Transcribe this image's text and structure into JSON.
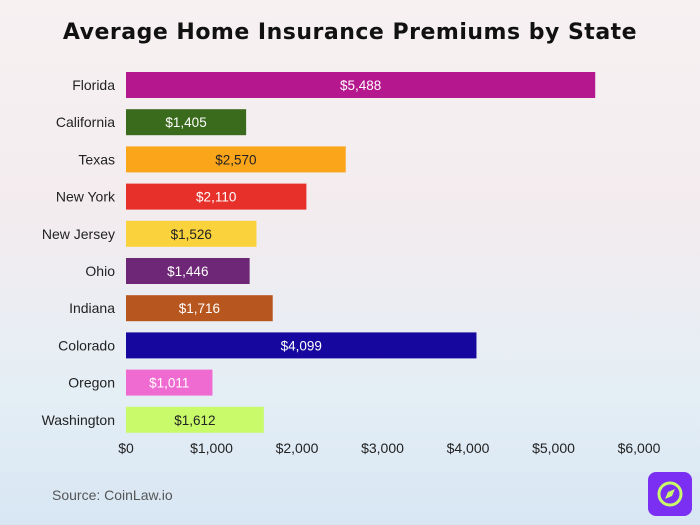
{
  "chart_data": {
    "type": "bar",
    "orientation": "horizontal",
    "title": "Average Home Insurance Premiums by State",
    "categories": [
      "Florida",
      "California",
      "Texas",
      "New York",
      "New Jersey",
      "Ohio",
      "Indiana",
      "Colorado",
      "Oregon",
      "Washington"
    ],
    "values": [
      5488,
      1405,
      2570,
      2110,
      1526,
      1446,
      1716,
      4099,
      1011,
      1612
    ],
    "value_labels": [
      "$5,488",
      "$1,405",
      "$2,570",
      "$2,110",
      "$1,526",
      "$1,446",
      "$1,716",
      "$4,099",
      "$1,011",
      "$1,612"
    ],
    "colors": [
      "#b5178e",
      "#3a6a1b",
      "#fba51b",
      "#e8302b",
      "#f9d23c",
      "#6e2676",
      "#b7561e",
      "#16089f",
      "#ef6bd1",
      "#c8fa6a"
    ],
    "label_colors": [
      "#ffffff",
      "#ffffff",
      "#222222",
      "#ffffff",
      "#222222",
      "#ffffff",
      "#ffffff",
      "#ffffff",
      "#ffffff",
      "#222222"
    ],
    "xlim": [
      0,
      6000
    ],
    "x_ticks": [
      0,
      1000,
      2000,
      3000,
      4000,
      5000,
      6000
    ],
    "x_tick_labels": [
      "$0",
      "$1,000",
      "$2,000",
      "$3,000",
      "$4,000",
      "$5,000",
      "$6,000"
    ],
    "xlabel": "",
    "ylabel": "",
    "grid": false,
    "legend": "none"
  },
  "source": "Source: CoinLaw.io",
  "logo_icon": "compass-icon",
  "logo_color": "#7b2ff2"
}
